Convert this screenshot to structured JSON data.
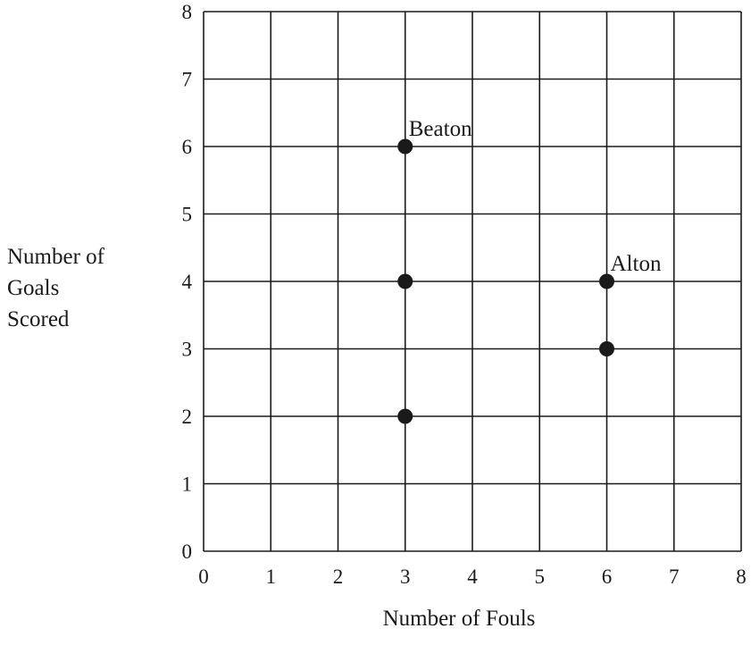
{
  "chart_data": {
    "type": "scatter",
    "title": "",
    "xlabel": "Number of Fouls",
    "ylabel": [
      "Number of",
      "Goals",
      "Scored"
    ],
    "xlim": [
      0,
      8
    ],
    "ylim": [
      0,
      8
    ],
    "xticks": [
      0,
      1,
      2,
      3,
      4,
      5,
      6,
      7,
      8
    ],
    "yticks": [
      0,
      1,
      2,
      3,
      4,
      5,
      6,
      7,
      8
    ],
    "grid": true,
    "legend": "none",
    "colors": {
      "point": "#1a1a1a",
      "grid": "#1a1a1a"
    },
    "points": [
      {
        "x": 3,
        "y": 6,
        "label": "Beaton"
      },
      {
        "x": 3,
        "y": 4,
        "label": ""
      },
      {
        "x": 3,
        "y": 2,
        "label": ""
      },
      {
        "x": 6,
        "y": 4,
        "label": "Alton"
      },
      {
        "x": 6,
        "y": 3,
        "label": ""
      }
    ]
  }
}
